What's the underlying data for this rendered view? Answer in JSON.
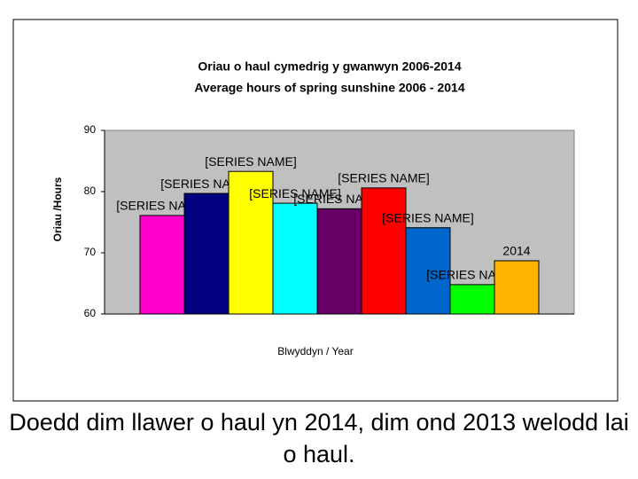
{
  "chart_data": {
    "type": "bar",
    "title": "Oriau o haul cymedrig y gwanwyn 2006-2014",
    "subtitle": "Average hours of spring sunshine 2006 - 2014",
    "y_label": "Oriau /Hours",
    "x_label": "Blwyddyn / Year",
    "categories": [
      null,
      null,
      null,
      null,
      null,
      null,
      null,
      null,
      null
    ],
    "values": [
      76.1,
      79.7,
      83.3,
      78.1,
      77.2,
      80.6,
      74.1,
      64.8,
      68.7
    ],
    "data_labels": [
      "[SERIES NAME]",
      "[SERIES NAME]",
      "[SERIES NAME]",
      "[SERIES NAME]",
      "[SERIES NAME]",
      "[SERIES NAME]",
      "[SERIES NAME]",
      "[SERIES NAME]",
      "2014"
    ],
    "colors": [
      "#ff00cc",
      "#000080",
      "#ffff00",
      "#00ffff",
      "#660066",
      "#ff0000",
      "#0066cc",
      "#00ff00",
      "#ffb300"
    ],
    "ylim": [
      60,
      90
    ],
    "yticks": [
      60,
      70,
      80,
      90
    ],
    "grid": false
  },
  "caption": "Doedd dim llawer o haul yn 2014, dim ond 2013 welodd lai o haul."
}
